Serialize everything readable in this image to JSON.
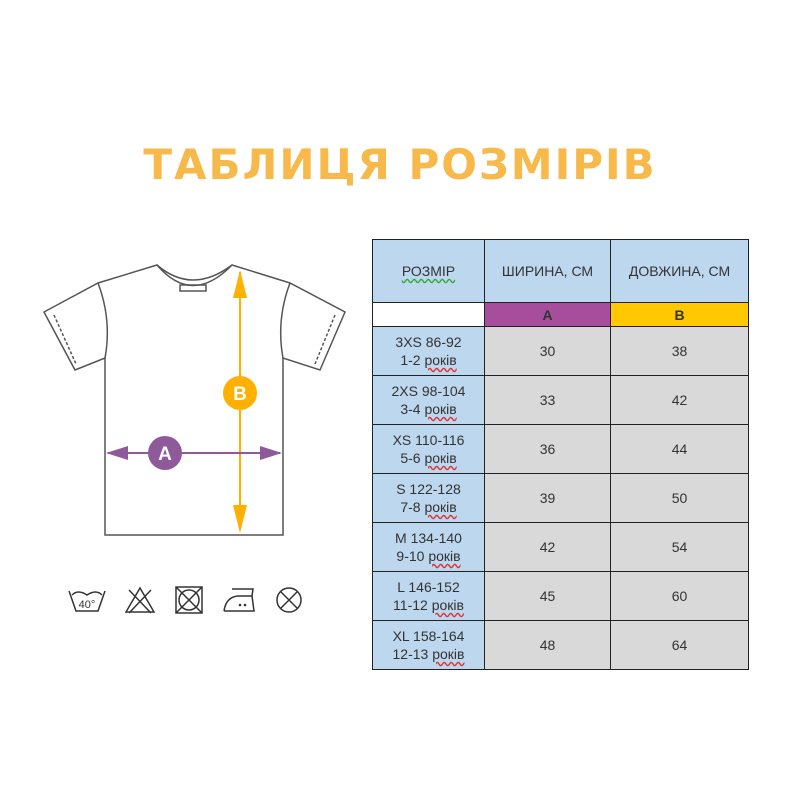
{
  "title": "ТАБЛИЦЯ РОЗМІРІВ",
  "colors": {
    "title": "#F8B94B",
    "width_a": "#A64D9B",
    "length_b": "#FFC800",
    "header_bg": "#BDD7EE",
    "cell_bg": "#D9D9D9"
  },
  "diagram": {
    "label_a": "A",
    "label_b": "B"
  },
  "care_icons": [
    "wash-40-icon",
    "no-bleach-icon",
    "no-tumble-dry-icon",
    "iron-low-icon",
    "no-dry-clean-icon"
  ],
  "care_wash_temp": "40°",
  "table": {
    "headers": [
      "РОЗМІР",
      "ШИРИНА, СМ",
      "ДОВЖИНА, СМ"
    ],
    "sub_headers": [
      "",
      "A",
      "B"
    ],
    "rows": [
      {
        "size": "3XS 86-92",
        "age": "1-2",
        "unit": "років",
        "width": "30",
        "length": "38"
      },
      {
        "size": "2XS 98-104",
        "age": "3-4",
        "unit": "років",
        "width": "33",
        "length": "42"
      },
      {
        "size": "XS 110-116",
        "age": "5-6",
        "unit": "років",
        "width": "36",
        "length": "44"
      },
      {
        "size": "S 122-128",
        "age": "7-8",
        "unit": "років",
        "width": "39",
        "length": "50"
      },
      {
        "size": "M 134-140",
        "age": "9-10",
        "unit": "років",
        "width": "42",
        "length": "54"
      },
      {
        "size": "L 146-152",
        "age": "11-12",
        "unit": "років",
        "width": "45",
        "length": "60"
      },
      {
        "size": "XL 158-164",
        "age": "12-13",
        "unit": "років",
        "width": "48",
        "length": "64"
      }
    ]
  }
}
